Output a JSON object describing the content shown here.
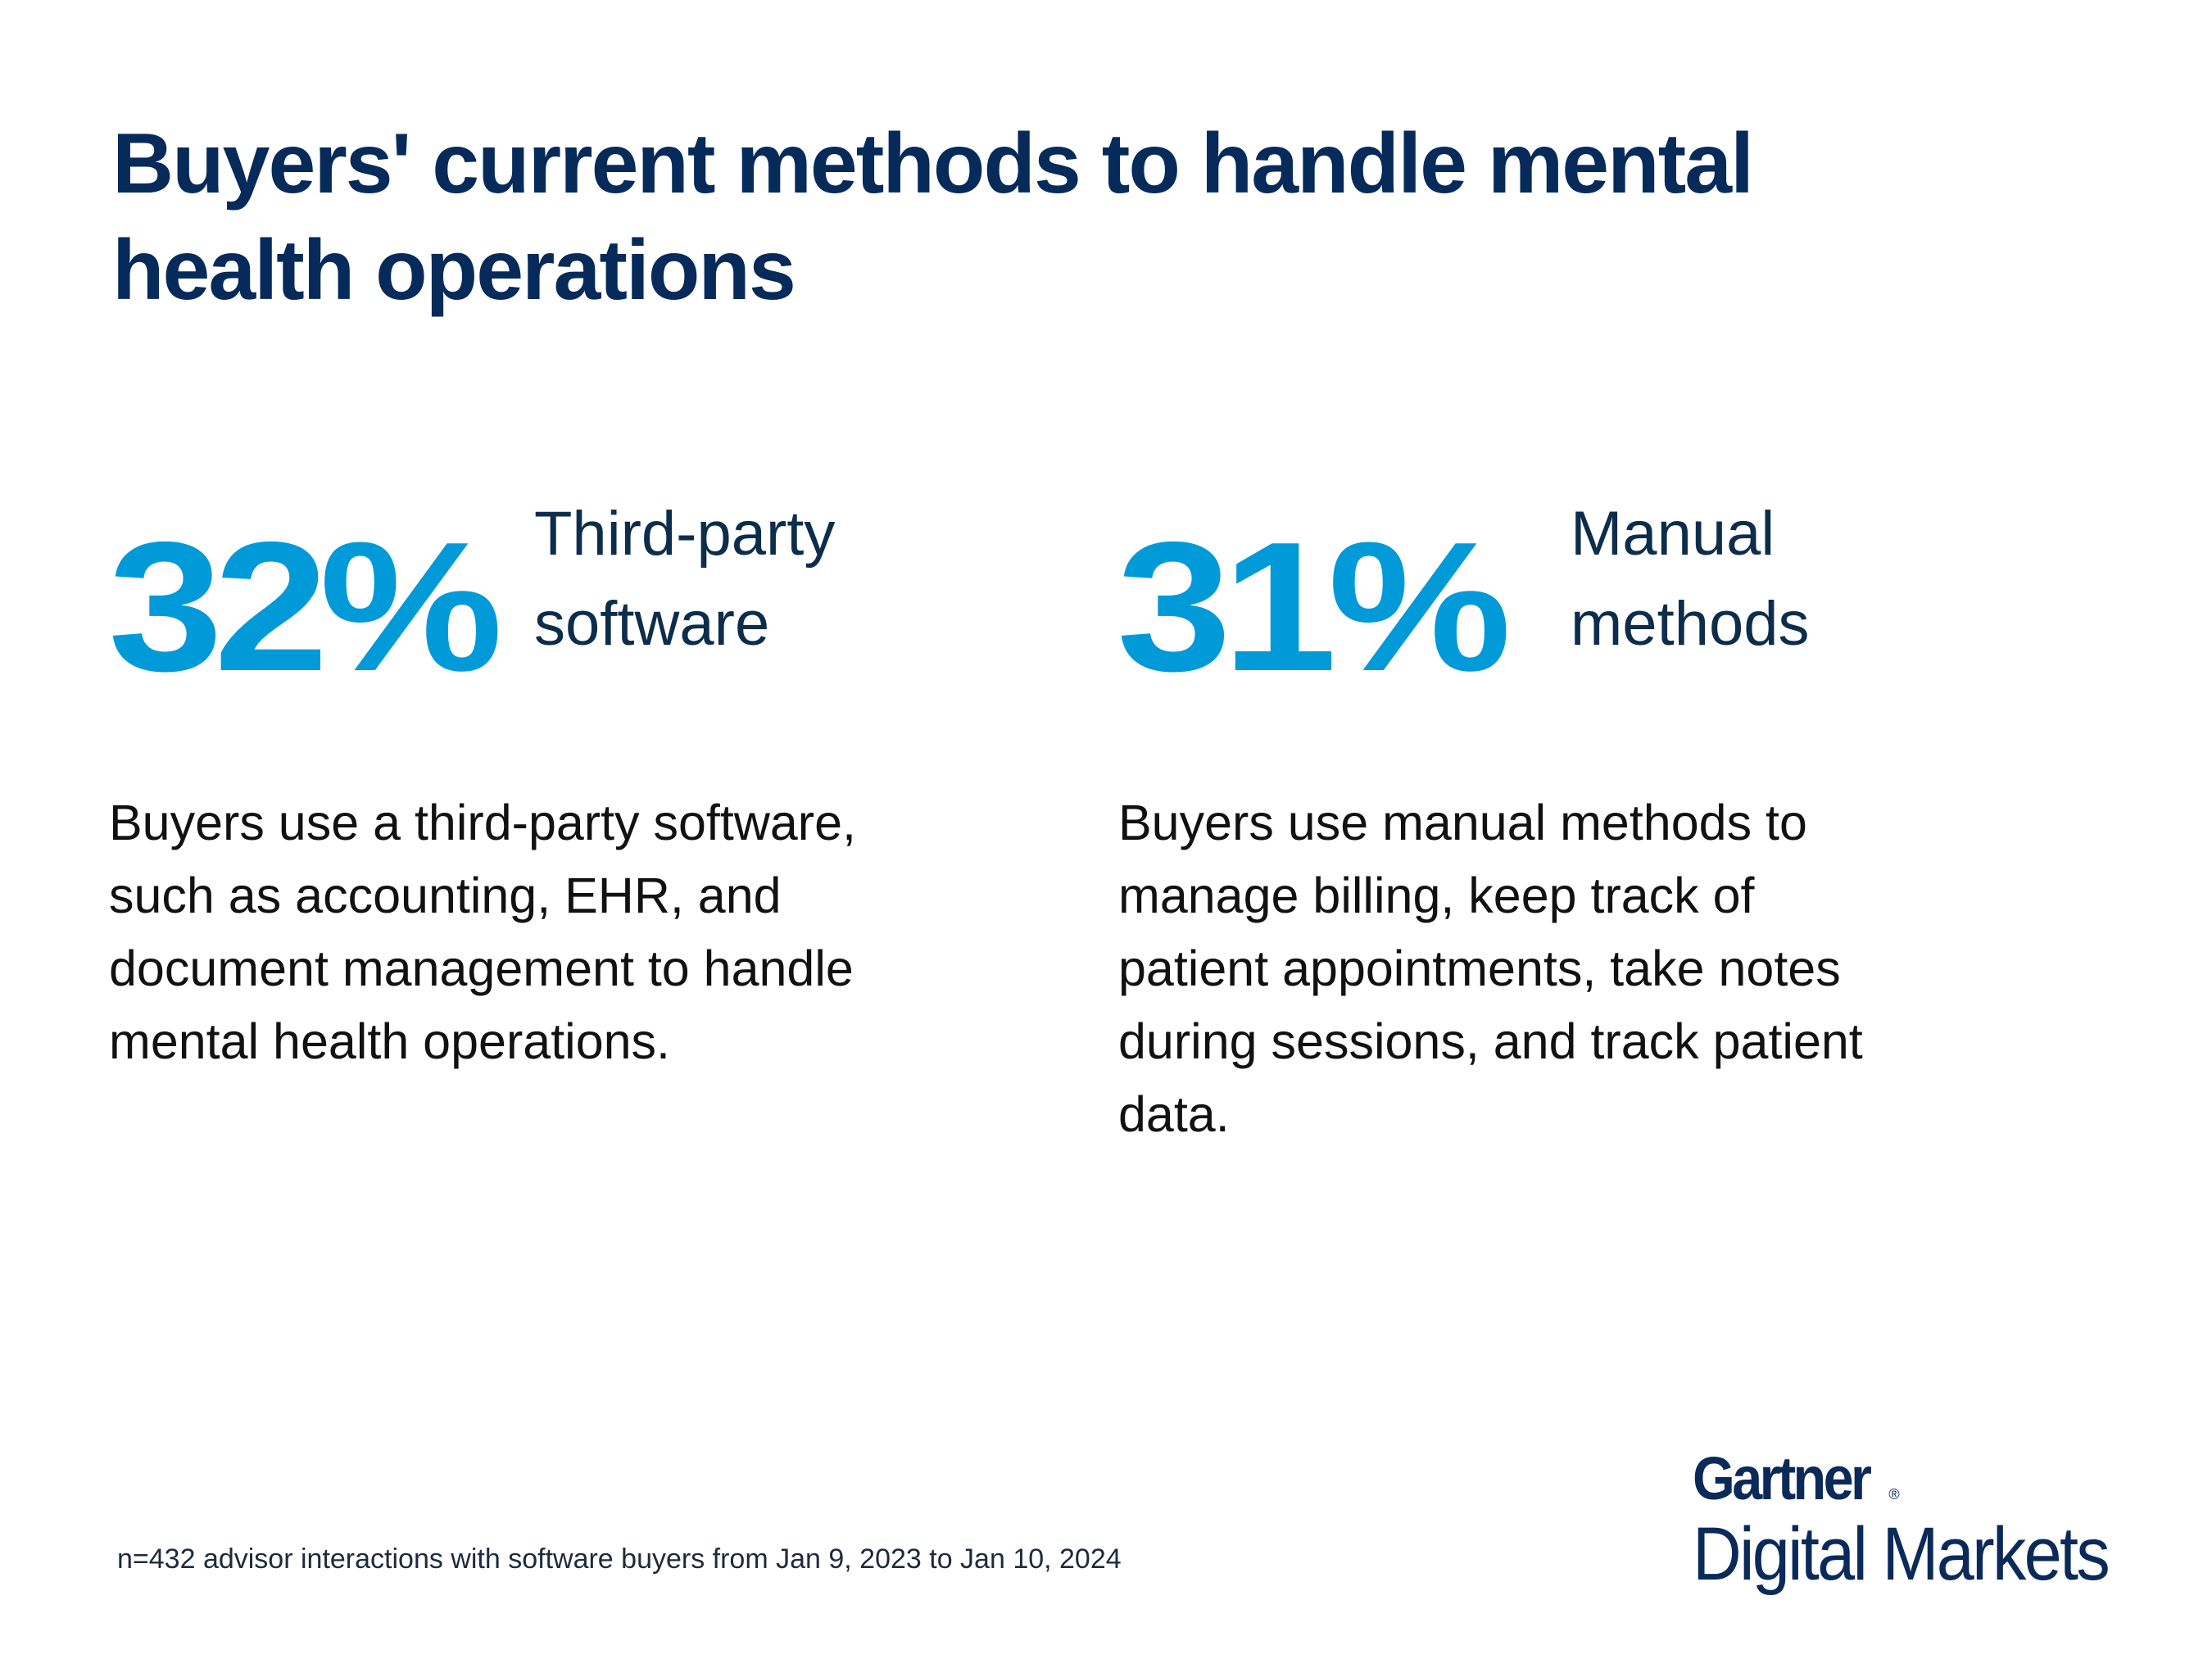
{
  "title": "Buyers' current methods to handle mental health operations",
  "accent_color": "#009ad9",
  "title_color": "#062a5a",
  "stats": [
    {
      "value": "32%",
      "label_line1": "Third-party",
      "label_line2": "software",
      "description": "Buyers use a third-party software, such as accounting, EHR, and document management to handle mental health operations."
    },
    {
      "value": "31%",
      "label_line1": "Manual",
      "label_line2": "methods",
      "description": "Buyers use manual methods to manage billing, keep track of patient appointments, take notes during sessions, and track patient data."
    }
  ],
  "footnote": "n=432 advisor interactions with software buyers from Jan 9, 2023 to Jan 10, 2024",
  "logo": {
    "brand": "Gartner",
    "registered": "®",
    "product": "Digital Markets"
  }
}
